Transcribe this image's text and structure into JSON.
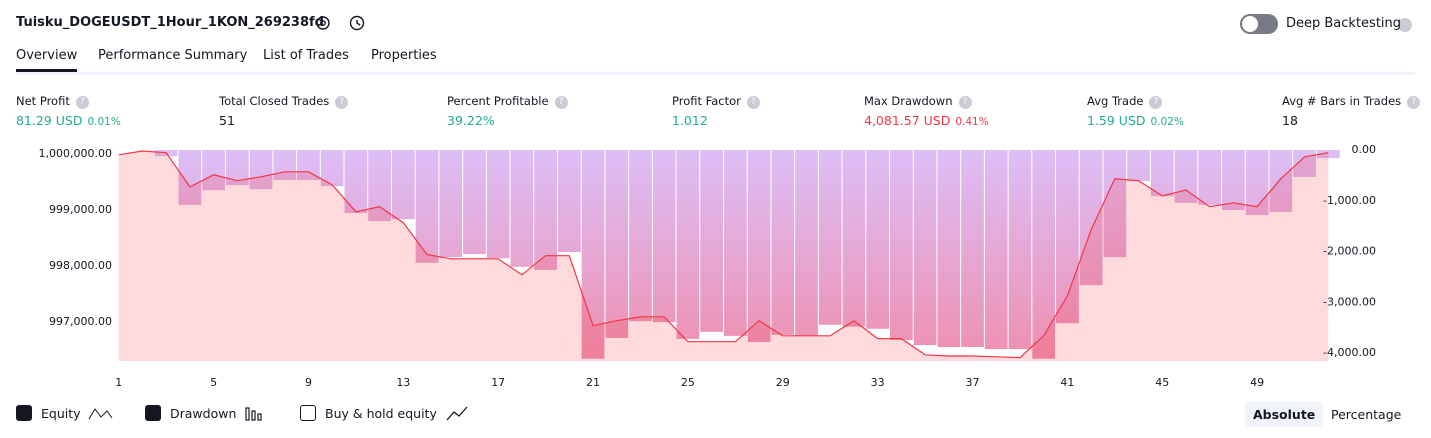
{
  "header": {
    "title": "Tuisku_DOGEUSDT_1Hour_1KON_269238fd",
    "deep_backtesting": "Deep Backtesting"
  },
  "tabs": [
    "Overview",
    "Performance Summary",
    "List of Trades",
    "Properties"
  ],
  "active_tab": 0,
  "metrics": [
    {
      "label": "Net Profit",
      "value": "81.29 USD",
      "percent": "0.01%",
      "color": "#22ab94"
    },
    {
      "label": "Total Closed Trades",
      "value": "51",
      "color": "#131722"
    },
    {
      "label": "Percent Profitable",
      "value": "39.22%",
      "color": "#22ab94"
    },
    {
      "label": "Profit Factor",
      "value": "1.012",
      "color": "#22ab94"
    },
    {
      "label": "Max Drawdown",
      "value": "4,081.57 USD",
      "percent": "0.41%",
      "color": "#f23645"
    },
    {
      "label": "Avg Trade",
      "value": "1.59 USD",
      "percent": "0.02%",
      "color": "#22ab94"
    },
    {
      "label": "Avg # Bars in Trades",
      "value": "18",
      "color": "#131722"
    }
  ],
  "chart_data": {
    "type": "line",
    "x": [
      1,
      2,
      3,
      4,
      5,
      6,
      7,
      8,
      9,
      10,
      11,
      12,
      13,
      14,
      15,
      16,
      17,
      18,
      19,
      20,
      21,
      22,
      23,
      24,
      25,
      26,
      27,
      28,
      29,
      30,
      31,
      32,
      33,
      34,
      35,
      36,
      37,
      38,
      39,
      40,
      41,
      42,
      43,
      44,
      45,
      46,
      47,
      48,
      49,
      50,
      51,
      52
    ],
    "xlim": [
      0,
      53
    ],
    "xticks": [
      1,
      5,
      9,
      13,
      17,
      21,
      25,
      29,
      33,
      37,
      41,
      45,
      49
    ],
    "ylim": [
      996300,
      1000140
    ],
    "yticks": [
      {
        "value": 1000000,
        "label": "1,000,000.00"
      },
      {
        "value": 999000,
        "label": "999,000.00"
      },
      {
        "value": 998000,
        "label": "998,000.00"
      },
      {
        "value": 997000,
        "label": "997,000.00"
      }
    ],
    "y2lim": [
      -4155,
      80
    ],
    "y2ticks": [
      {
        "value": 0,
        "label": "0.00"
      },
      {
        "value": -1000,
        "label": "-1,000.00"
      },
      {
        "value": -2000,
        "label": "-2,000.00"
      },
      {
        "value": -3000,
        "label": "-3,000.00"
      },
      {
        "value": -4000,
        "label": "-4,000.00"
      }
    ],
    "series": [
      {
        "name": "Equity",
        "type": "line",
        "color": "#f23645",
        "values": [
          999982,
          1000050,
          1000020,
          999410,
          999625,
          999520,
          999590,
          999680,
          999680,
          999445,
          998965,
          999055,
          998770,
          998200,
          998125,
          998125,
          998125,
          997840,
          998180,
          998180,
          996930,
          997020,
          997090,
          997090,
          996645,
          996645,
          996645,
          997020,
          996750,
          996750,
          996750,
          997020,
          996700,
          996700,
          996410,
          996390,
          996390,
          996375,
          996360,
          996750,
          997465,
          998640,
          999555,
          999520,
          999250,
          999355,
          999055,
          999125,
          999055,
          999555,
          999945,
          1000020
        ]
      },
      {
        "name": "Drawdown",
        "type": "bar",
        "axis": "y2",
        "color": "#dcbff8",
        "gradient_end": "#ee8fae",
        "values": [
          0,
          0,
          -120,
          -1080,
          -790,
          -690,
          -770,
          -590,
          -590,
          -710,
          -1240,
          -1400,
          -1360,
          -2220,
          -2110,
          -2050,
          -2130,
          -2300,
          -2360,
          -2010,
          -4110,
          -3700,
          -3370,
          -3390,
          -3720,
          -3580,
          -3660,
          -3780,
          -3640,
          -3660,
          -3440,
          -3480,
          -3520,
          -3740,
          -3840,
          -3880,
          -3880,
          -3920,
          -3920,
          -4110,
          -3410,
          -2660,
          -2110,
          -610,
          -910,
          -1040,
          -1080,
          -1180,
          -1280,
          -1220,
          -530,
          -160
        ]
      }
    ]
  },
  "buy_hold": "Buy & hold equity",
  "modes": [
    "Absolute",
    "Percentage"
  ],
  "active_mode": 0
}
